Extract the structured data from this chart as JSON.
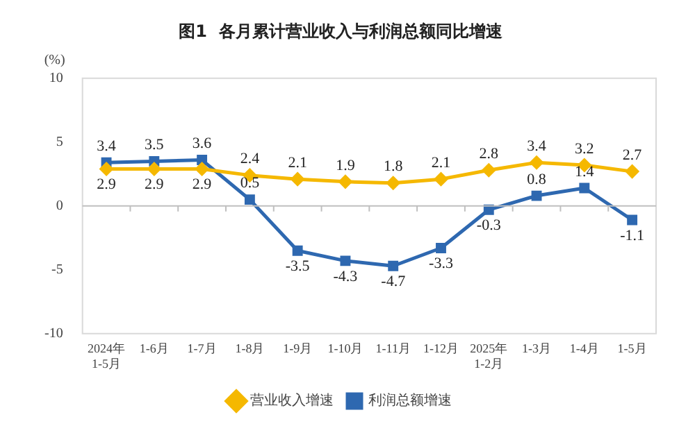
{
  "chart_data": {
    "type": "line",
    "title": "图1  各月累计营业收入与利润总额同比增速",
    "ylabel": "(%)",
    "categories": [
      "2024年\n1-5月",
      "1-6月",
      "1-7月",
      "1-8月",
      "1-9月",
      "1-10月",
      "1-11月",
      "1-12月",
      "2025年\n1-2月",
      "1-3月",
      "1-4月",
      "1-5月"
    ],
    "series": [
      {
        "name": "营业收入增速",
        "color": "#f5b800",
        "marker": "diamond",
        "values": [
          2.9,
          2.9,
          2.9,
          2.4,
          2.1,
          1.9,
          1.8,
          2.1,
          2.8,
          3.4,
          3.2,
          2.7
        ]
      },
      {
        "name": "利润总额增速",
        "color": "#2e68b0",
        "marker": "square",
        "values": [
          3.4,
          3.5,
          3.6,
          0.5,
          -3.5,
          -4.3,
          -4.7,
          -3.3,
          -0.3,
          0.8,
          1.4,
          -1.1
        ]
      }
    ],
    "ylim": [
      -10,
      10
    ],
    "yticks": [
      -10,
      -5,
      0,
      5,
      10
    ],
    "ref_lines": [
      {
        "axis": "y",
        "value": 0,
        "color": "#bfbfbf"
      }
    ],
    "legend": "bottom",
    "data_labels": true
  }
}
